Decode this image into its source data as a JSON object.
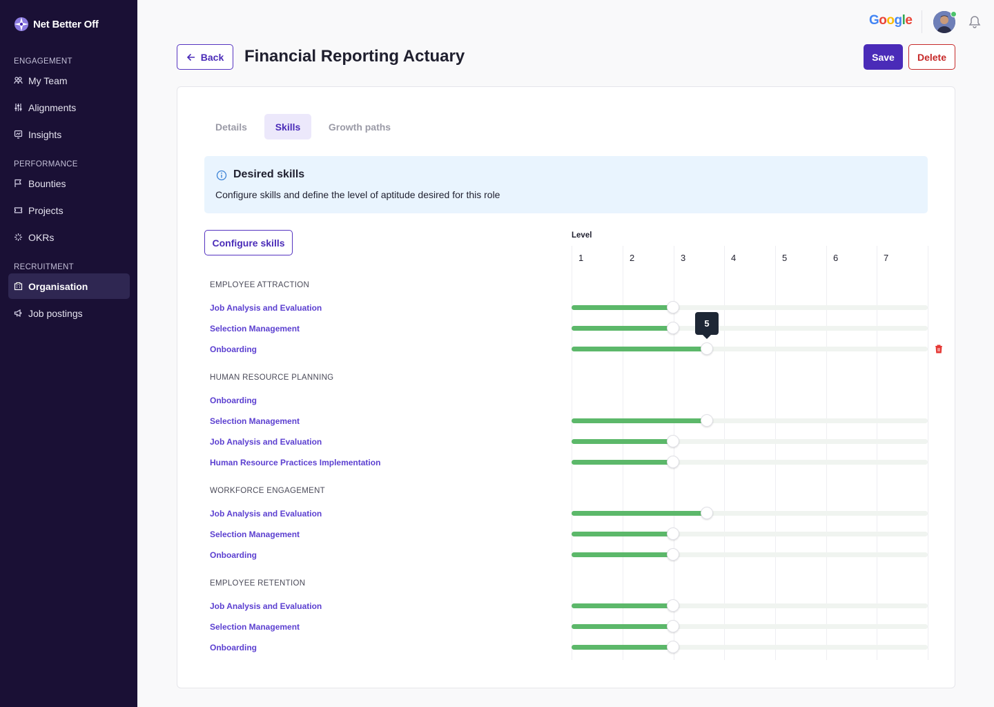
{
  "app": {
    "name": "Net Better Off",
    "brand_color": "#4a2bb8",
    "sidebar_bg": "#1a1035"
  },
  "sidebar": {
    "sections": [
      {
        "label": "ENGAGEMENT",
        "items": [
          {
            "label": "My Team",
            "icon": "team-icon"
          },
          {
            "label": "Alignments",
            "icon": "sliders-icon"
          },
          {
            "label": "Insights",
            "icon": "insights-icon"
          }
        ]
      },
      {
        "label": "PERFORMANCE",
        "items": [
          {
            "label": "Bounties",
            "icon": "flag-icon"
          },
          {
            "label": "Projects",
            "icon": "ticket-icon"
          },
          {
            "label": "OKRs",
            "icon": "target-icon"
          }
        ]
      },
      {
        "label": "RECRUITMENT",
        "items": [
          {
            "label": "Organisation",
            "icon": "organisation-icon",
            "active": true
          },
          {
            "label": "Job postings",
            "icon": "megaphone-icon"
          }
        ]
      }
    ]
  },
  "topbar": {
    "google": "Google",
    "online_status_color": "#4cc36b"
  },
  "header": {
    "back_label": "Back",
    "title": "Financial Reporting Actuary",
    "save_label": "Save",
    "delete_label": "Delete"
  },
  "tabs": [
    {
      "label": "Details",
      "active": false
    },
    {
      "label": "Skills",
      "active": true
    },
    {
      "label": "Growth paths",
      "active": false
    }
  ],
  "info": {
    "title": "Desired skills",
    "description": "Configure skills and define the level of aptitude desired for this role"
  },
  "configure_label": "Configure skills",
  "level": {
    "label": "Level",
    "levels": [
      "1",
      "2",
      "3",
      "4",
      "5",
      "6",
      "7"
    ],
    "fill_color": "#5cb86a"
  },
  "tooltip_value": "5",
  "groups": [
    {
      "label": "EMPLOYEE ATTRACTION",
      "skills": [
        {
          "label": "Job Analysis and Evaluation",
          "level": 3
        },
        {
          "label": "Selection Management",
          "level": 3
        },
        {
          "label": "Onboarding",
          "level": 4
        }
      ]
    },
    {
      "label": "HUMAN RESOURCE PLANNING",
      "skills": [
        {
          "label": "Onboarding",
          "level": null
        },
        {
          "label": "Selection Management",
          "level": 4
        },
        {
          "label": "Job Analysis and Evaluation",
          "level": 3
        },
        {
          "label": "Human Resource Practices Implementation",
          "level": 3
        }
      ]
    },
    {
      "label": "WORKFORCE ENGAGEMENT",
      "skills": [
        {
          "label": "Job Analysis and Evaluation",
          "level": 4
        },
        {
          "label": "Selection Management",
          "level": 3
        },
        {
          "label": "Onboarding",
          "level": 3
        }
      ]
    },
    {
      "label": "EMPLOYEE RETENTION",
      "skills": [
        {
          "label": "Job Analysis and Evaluation",
          "level": 3
        },
        {
          "label": "Selection Management",
          "level": 3
        },
        {
          "label": "Onboarding",
          "level": 3
        }
      ]
    }
  ]
}
